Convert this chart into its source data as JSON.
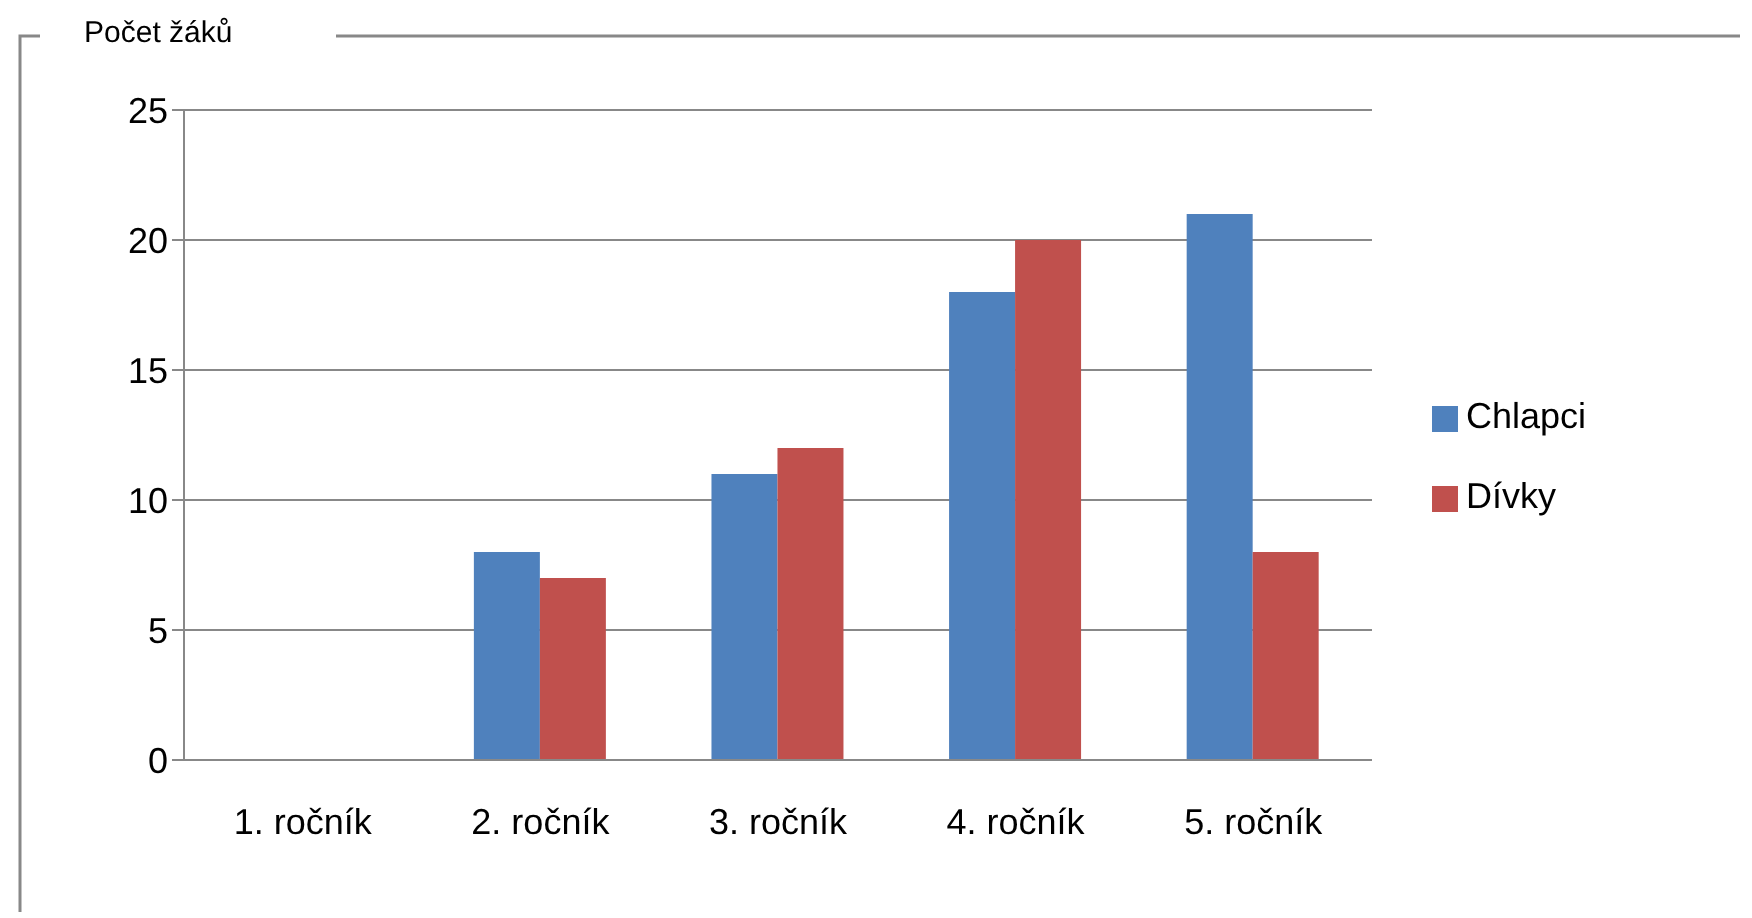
{
  "chart_data": {
    "type": "bar",
    "ylabel": "Počet žáků",
    "categories": [
      "1. ročník",
      "2. ročník",
      "3. ročník",
      "4. ročník",
      "5. ročník"
    ],
    "series": [
      {
        "name": "Chlapci",
        "color": "#4f81bd",
        "values": [
          0,
          8,
          11,
          18,
          21
        ]
      },
      {
        "name": "Dívky",
        "color": "#c0504d",
        "values": [
          0,
          7,
          12,
          20,
          8
        ]
      }
    ],
    "ylim": [
      0,
      25
    ],
    "yticks": [
      0,
      5,
      10,
      15,
      20,
      25
    ],
    "grid": "y",
    "legend": "right"
  }
}
